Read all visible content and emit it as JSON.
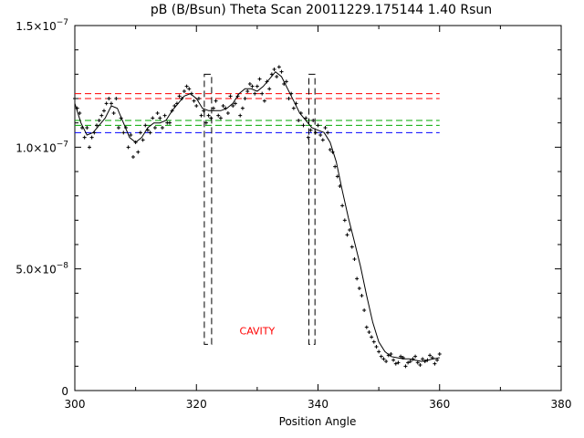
{
  "chart_data": {
    "type": "line",
    "title": "pB (B/Bsun) Theta Scan 20011229.175144 1.40 Rsun",
    "xlabel": "Position Angle",
    "ylabel": "",
    "xlim": [
      300,
      380
    ],
    "ylim": [
      0,
      1.5e-07
    ],
    "x_ticks": [
      300,
      320,
      340,
      360,
      380
    ],
    "x_tick_labels": [
      "300",
      "320",
      "340",
      "360",
      "380"
    ],
    "y_ticks": [
      0,
      5e-08,
      1e-07,
      1.5e-07
    ],
    "y_tick_labels": [
      {
        "mantissa": "0",
        "exponent": ""
      },
      {
        "mantissa": "5.0×10",
        "exponent": "−8"
      },
      {
        "mantissa": "1.0×10",
        "exponent": "−7"
      },
      {
        "mantissa": "1.5×10",
        "exponent": "−7"
      }
    ],
    "grid": false,
    "series": [
      {
        "style": "solid",
        "color": "#000000",
        "x": [
          300.0,
          301.0,
          302.0,
          303.0,
          304.0,
          305.0,
          306.0,
          307.0,
          308.0,
          309.0,
          310.0,
          311.0,
          312.0,
          313.0,
          314.0,
          315.0,
          316.0,
          317.0,
          318.0,
          319.0,
          320.0,
          321.0,
          322.0,
          323.0,
          324.0,
          325.0,
          326.0,
          327.0,
          328.0,
          329.0,
          330.0,
          331.0,
          332.0,
          333.0,
          334.0,
          335.0,
          336.0,
          337.0,
          338.0,
          339.0,
          340.0,
          341.0,
          342.0,
          343.0,
          344.0,
          345.0,
          346.0,
          347.0,
          348.0,
          349.0,
          350.0,
          351.0,
          352.0,
          353.0,
          354.0,
          355.0,
          356.0,
          357.0,
          358.0,
          359.0,
          360.0
        ],
        "y": [
          1.18e-07,
          1.1e-07,
          1.05e-07,
          1.06e-07,
          1.09e-07,
          1.12e-07,
          1.17e-07,
          1.16e-07,
          1.1e-07,
          1.04e-07,
          1.02e-07,
          1.04e-07,
          1.08e-07,
          1.1e-07,
          1.1e-07,
          1.11e-07,
          1.15e-07,
          1.18e-07,
          1.21e-07,
          1.22e-07,
          1.2e-07,
          1.16e-07,
          1.15e-07,
          1.15e-07,
          1.15e-07,
          1.16e-07,
          1.18e-07,
          1.22e-07,
          1.24e-07,
          1.24e-07,
          1.23e-07,
          1.25e-07,
          1.28e-07,
          1.31e-07,
          1.29e-07,
          1.24e-07,
          1.19e-07,
          1.14e-07,
          1.11e-07,
          1.08e-07,
          1.07e-07,
          1.06e-07,
          1.02e-07,
          9.4e-08,
          8.2e-08,
          7.1e-08,
          6.1e-08,
          5.1e-08,
          3.9e-08,
          2.8e-08,
          2e-08,
          1.6e-08,
          1.4e-08,
          1.35e-08,
          1.3e-08,
          1.3e-08,
          1.25e-08,
          1.2e-08,
          1.25e-08,
          1.3e-08,
          1.35e-08
        ]
      },
      {
        "style": "points",
        "color": "#000000",
        "marker": "+",
        "x": [
          300.0,
          300.8,
          301.6,
          302.4,
          303.2,
          304.0,
          304.8,
          305.6,
          306.4,
          307.2,
          308.0,
          308.8,
          309.6,
          310.4,
          311.2,
          312.0,
          312.8,
          313.6,
          314.4,
          315.2,
          316.0,
          316.8,
          317.6,
          318.4,
          319.2,
          320.0,
          320.8,
          321.6,
          322.4,
          323.2,
          324.0,
          324.8,
          325.6,
          326.4,
          327.2,
          328.0,
          328.8,
          329.6,
          330.4,
          331.2,
          332.0,
          332.8,
          333.6,
          334.4,
          335.2,
          336.0,
          336.8,
          337.6,
          338.4,
          339.2,
          340.0,
          340.8,
          341.6,
          342.4,
          343.2,
          344.0,
          344.8,
          345.6,
          346.4,
          347.2,
          348.0,
          348.8,
          349.6,
          350.4,
          351.2,
          352.0,
          352.8,
          353.6,
          354.4,
          355.2,
          356.0,
          356.8,
          357.6,
          358.4,
          359.2,
          360.0
        ],
        "y": [
          1.2e-07,
          1.14e-07,
          1.04e-07,
          1e-07,
          1.06e-07,
          1.11e-07,
          1.15e-07,
          1.2e-07,
          1.14e-07,
          1.08e-07,
          1.06e-07,
          1e-07,
          9.6e-08,
          9.8e-08,
          1.03e-07,
          1.07e-07,
          1.12e-07,
          1.14e-07,
          1.08e-07,
          1.1e-07,
          1.15e-07,
          1.18e-07,
          1.2e-07,
          1.25e-07,
          1.22e-07,
          1.17e-07,
          1.13e-07,
          1.1e-07,
          1.12e-07,
          1.19e-07,
          1.12e-07,
          1.16e-07,
          1.21e-07,
          1.18e-07,
          1.13e-07,
          1.2e-07,
          1.26e-07,
          1.22e-07,
          1.28e-07,
          1.19e-07,
          1.24e-07,
          1.32e-07,
          1.33e-07,
          1.26e-07,
          1.2e-07,
          1.16e-07,
          1.11e-07,
          1.09e-07,
          1.04e-07,
          1.11e-07,
          1.09e-07,
          1.03e-07,
          1.06e-07,
          9.8e-08,
          8.8e-08,
          7.6e-08,
          6.4e-08,
          5.9e-08,
          4.6e-08,
          3.9e-08,
          2.6e-08,
          2.2e-08,
          1.8e-08,
          1.4e-08,
          1.2e-08,
          1.5e-08,
          1.1e-08,
          1.4e-08,
          1e-08,
          1.2e-08,
          1.4e-08,
          1.05e-08,
          1.2e-08,
          1.45e-08,
          1.1e-08,
          1.5e-08
        ]
      },
      {
        "style": "points",
        "color": "#000000",
        "marker": "+",
        "x": [
          300.4,
          301.2,
          302.0,
          302.8,
          303.6,
          304.4,
          305.2,
          306.0,
          306.8,
          307.6,
          308.4,
          309.2,
          310.0,
          310.8,
          311.6,
          312.4,
          313.2,
          314.0,
          314.8,
          315.6,
          316.4,
          317.2,
          318.0,
          318.8,
          319.6,
          320.4,
          321.2,
          322.0,
          322.8,
          323.6,
          324.4,
          325.2,
          326.0,
          326.8,
          327.6,
          328.4,
          329.2,
          330.0,
          330.8,
          331.6,
          332.4,
          333.2,
          334.0,
          334.8,
          335.6,
          336.4,
          337.2,
          338.0,
          338.8,
          339.6,
          340.4,
          341.2,
          342.0,
          342.8,
          343.6,
          344.4,
          345.2,
          346.0,
          346.8,
          347.6,
          348.4,
          349.2,
          350.0,
          350.8,
          351.6,
          352.4,
          353.2,
          354.0,
          354.8,
          355.6,
          356.4,
          357.2,
          358.0,
          358.8,
          359.6
        ],
        "y": [
          1.16e-07,
          1.08e-07,
          1.08e-07,
          1.04e-07,
          1.09e-07,
          1.13e-07,
          1.18e-07,
          1.18e-07,
          1.2e-07,
          1.12e-07,
          1.08e-07,
          1.05e-07,
          1.02e-07,
          1.06e-07,
          1.09e-07,
          1.06e-07,
          1.08e-07,
          1.12e-07,
          1.13e-07,
          1.1e-07,
          1.17e-07,
          1.21e-07,
          1.23e-07,
          1.24e-07,
          1.19e-07,
          1.2e-07,
          1.15e-07,
          1.13e-07,
          1.16e-07,
          1.13e-07,
          1.17e-07,
          1.14e-07,
          1.17e-07,
          1.21e-07,
          1.16e-07,
          1.23e-07,
          1.25e-07,
          1.25e-07,
          1.22e-07,
          1.27e-07,
          1.3e-07,
          1.29e-07,
          1.31e-07,
          1.27e-07,
          1.22e-07,
          1.18e-07,
          1.14e-07,
          1.12e-07,
          1.07e-07,
          1.06e-07,
          1.05e-07,
          1.08e-07,
          9.9e-08,
          9.2e-08,
          8.4e-08,
          7e-08,
          6.6e-08,
          5.4e-08,
          4.2e-08,
          3.3e-08,
          2.4e-08,
          2e-08,
          1.6e-08,
          1.3e-08,
          1.45e-08,
          1.25e-08,
          1.15e-08,
          1.35e-08,
          1.15e-08,
          1.3e-08,
          1.15e-08,
          1.3e-08,
          1.25e-08,
          1.35e-08,
          1.25e-08
        ]
      }
    ],
    "reference_lines": [
      {
        "color": "#ff0000",
        "style": "dashed",
        "y": 1.22e-07
      },
      {
        "color": "#ff0000",
        "style": "dashed",
        "y": 1.2e-07
      },
      {
        "color": "#00aa00",
        "style": "dashed",
        "y": 1.11e-07
      },
      {
        "color": "#00aa00",
        "style": "dashed",
        "y": 1.09e-07
      },
      {
        "color": "#0000ff",
        "style": "dashed",
        "y": 1.06e-07
      }
    ],
    "reference_line_x_range": [
      300,
      360
    ],
    "cavity_boundaries": [
      {
        "x_left": 321.3,
        "x_right": 322.5,
        "y_bottom": 1.9e-08,
        "y_top": 1.3e-07
      },
      {
        "x_left": 338.5,
        "x_right": 339.5,
        "y_bottom": 1.9e-08,
        "y_top": 1.3e-07
      }
    ],
    "annotations": [
      {
        "text": "CAVITY",
        "color": "#ff0000",
        "x": 330,
        "y": 2.3e-08
      }
    ]
  }
}
